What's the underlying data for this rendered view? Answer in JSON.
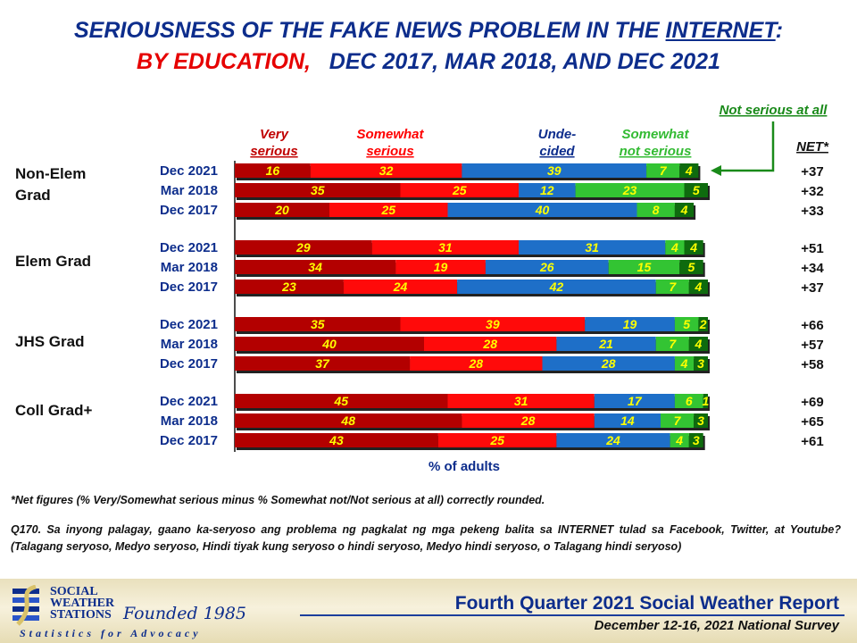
{
  "title": {
    "line1_prefix": "SERIOUSNESS OF THE FAKE NEWS PROBLEM IN THE ",
    "line1_emph": "INTERNET",
    "line1_suffix": ":",
    "line2_red": "BY EDUCATION,",
    "line2_rest": "DEC 2017, MAR 2018, AND DEC 2021"
  },
  "chart_data": {
    "type": "bar",
    "stacked": true,
    "orientation": "horizontal",
    "xlabel": "% of adults",
    "net_header": "NET*",
    "callout": "Not serious at all",
    "legend": [
      {
        "key": "very",
        "line1": "Very",
        "line2": "serious",
        "color": "#c00000"
      },
      {
        "key": "somewhat",
        "line1": "Somewhat",
        "line2": "serious",
        "color": "#ff0000"
      },
      {
        "key": "undecided",
        "line1": "Unde-",
        "line2": "cided",
        "color": "#0d2d8c"
      },
      {
        "key": "somewhat_not",
        "line1": "Somewhat",
        "line2": "not serious",
        "color": "#33bb33"
      }
    ],
    "series_colors": [
      "#b30000",
      "#ff0a0a",
      "#1e6fc8",
      "#33c433",
      "#0e6b0e"
    ],
    "label_color": "#ffff00",
    "groups": [
      {
        "name": "Non-Elem Grad",
        "rows": [
          {
            "period": "Dec 2021",
            "values": [
              16,
              32,
              39,
              7,
              4
            ],
            "net": "+37"
          },
          {
            "period": "Mar 2018",
            "values": [
              35,
              25,
              12,
              23,
              5
            ],
            "net": "+32"
          },
          {
            "period": "Dec 2017",
            "values": [
              20,
              25,
              40,
              8,
              4
            ],
            "net": "+33"
          }
        ]
      },
      {
        "name": "Elem Grad",
        "rows": [
          {
            "period": "Dec 2021",
            "values": [
              29,
              31,
              31,
              4,
              4
            ],
            "net": "+51"
          },
          {
            "period": "Mar 2018",
            "values": [
              34,
              19,
              26,
              15,
              5
            ],
            "net": "+34"
          },
          {
            "period": "Dec 2017",
            "values": [
              23,
              24,
              42,
              7,
              4
            ],
            "net": "+37"
          }
        ]
      },
      {
        "name": "JHS Grad",
        "rows": [
          {
            "period": "Dec 2021",
            "values": [
              35,
              39,
              19,
              5,
              2
            ],
            "net": "+66"
          },
          {
            "period": "Mar 2018",
            "values": [
              40,
              28,
              21,
              7,
              4
            ],
            "net": "+57"
          },
          {
            "period": "Dec 2017",
            "values": [
              37,
              28,
              28,
              4,
              3
            ],
            "net": "+58"
          }
        ]
      },
      {
        "name": "Coll Grad+",
        "rows": [
          {
            "period": "Dec 2021",
            "values": [
              45,
              31,
              17,
              6,
              1
            ],
            "net": "+69"
          },
          {
            "period": "Mar 2018",
            "values": [
              48,
              28,
              14,
              7,
              3
            ],
            "net": "+65"
          },
          {
            "period": "Dec 2017",
            "values": [
              43,
              25,
              24,
              4,
              3
            ],
            "net": "+61"
          }
        ]
      }
    ]
  },
  "footnote": "*Net figures (% Very/Somewhat serious minus % Somewhat not/Not serious at all) correctly rounded.",
  "question": "Q170. Sa inyong palagay, gaano ka-seryoso ang problema ng pagkalat ng mga pekeng balita sa INTERNET tulad sa Facebook, Twitter, at Youtube? (Talagang seryoso, Medyo seryoso, Hindi tiyak kung seryoso o hindi seryoso, Medyo hindi seryoso, o Talagang hindi seryoso)",
  "org": {
    "line1": "SOCIAL",
    "line2": "WEATHER",
    "line3": "STATIONS",
    "founded": "Founded 1985",
    "tagline": "Statistics for Advocacy"
  },
  "report_title": "Fourth Quarter 2021 Social Weather Report",
  "survey_dates": "December 12-16, 2021 National Survey"
}
